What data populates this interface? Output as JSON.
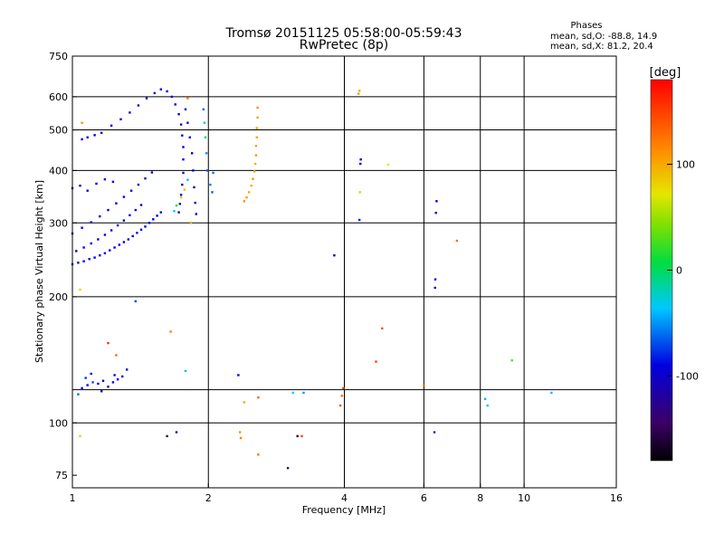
{
  "chart_data": {
    "type": "scatter",
    "title": "Tromsø 20151125 05:58:00-05:59:43",
    "subtitle": "RwPretec (8p)",
    "xlabel": "Frequency [MHz]",
    "ylabel": "Stationary phase Virtual Height [km]",
    "x_scale": "log",
    "y_scale": "log",
    "xlim": [
      1,
      16
    ],
    "ylim": [
      70,
      750
    ],
    "x_ticks": [
      1,
      2,
      4,
      6,
      8,
      10,
      16
    ],
    "x_tick_labels": [
      "1",
      "2",
      "4",
      "6",
      "8",
      "10",
      "16"
    ],
    "y_ticks": [
      75,
      100,
      200,
      300,
      400,
      500,
      600,
      750
    ],
    "y_tick_labels": [
      "75",
      "100",
      "200",
      "300",
      "400",
      "500",
      "600",
      "750"
    ],
    "grid_x": [
      2,
      4,
      6,
      8,
      10
    ],
    "grid_y": [
      100,
      200,
      300,
      400,
      500,
      600
    ],
    "minor_grid_y": [
      120
    ],
    "phases": {
      "title": "Phases",
      "line1": "mean, sd,O: -88.8, 14.9",
      "line2": "mean, sd,X:  81.2, 20.4"
    },
    "colorbar": {
      "label": "[deg]",
      "range": [
        -180,
        180
      ],
      "ticks": [
        100,
        0,
        -100
      ],
      "tick_labels": [
        "100",
        "0",
        "-100"
      ]
    },
    "series": [
      {
        "values": [
          {
            "x": 1.0,
            "y": 239,
            "phase": -95
          },
          {
            "x": 1.03,
            "y": 241,
            "phase": -98
          },
          {
            "x": 1.06,
            "y": 243,
            "phase": -92
          },
          {
            "x": 1.09,
            "y": 246,
            "phase": -96
          },
          {
            "x": 1.12,
            "y": 248,
            "phase": -90
          },
          {
            "x": 1.15,
            "y": 251,
            "phase": -94
          },
          {
            "x": 1.18,
            "y": 254,
            "phase": -88
          },
          {
            "x": 1.21,
            "y": 258,
            "phase": -97
          },
          {
            "x": 1.24,
            "y": 262,
            "phase": -91
          },
          {
            "x": 1.27,
            "y": 266,
            "phase": -95
          },
          {
            "x": 1.3,
            "y": 270,
            "phase": -89
          },
          {
            "x": 1.33,
            "y": 274,
            "phase": -99
          },
          {
            "x": 1.36,
            "y": 279,
            "phase": -93
          },
          {
            "x": 1.39,
            "y": 284,
            "phase": -87
          },
          {
            "x": 1.42,
            "y": 289,
            "phase": -96
          },
          {
            "x": 1.45,
            "y": 294,
            "phase": -90
          },
          {
            "x": 1.48,
            "y": 300,
            "phase": -94
          },
          {
            "x": 1.51,
            "y": 306,
            "phase": -92
          },
          {
            "x": 1.54,
            "y": 312,
            "phase": -98
          },
          {
            "x": 1.57,
            "y": 318,
            "phase": -86
          },
          {
            "x": 1.02,
            "y": 257,
            "phase": -92
          },
          {
            "x": 1.06,
            "y": 262,
            "phase": -96
          },
          {
            "x": 1.1,
            "y": 268,
            "phase": -90
          },
          {
            "x": 1.14,
            "y": 274,
            "phase": -94
          },
          {
            "x": 1.18,
            "y": 281,
            "phase": -89
          },
          {
            "x": 1.22,
            "y": 288,
            "phase": -97
          },
          {
            "x": 1.26,
            "y": 296,
            "phase": -93
          },
          {
            "x": 1.3,
            "y": 304,
            "phase": -88
          },
          {
            "x": 1.34,
            "y": 313,
            "phase": -95
          },
          {
            "x": 1.38,
            "y": 322,
            "phase": -91
          },
          {
            "x": 1.42,
            "y": 331,
            "phase": -96
          },
          {
            "x": 1.0,
            "y": 283,
            "phase": -90
          },
          {
            "x": 1.05,
            "y": 292,
            "phase": -94
          },
          {
            "x": 1.1,
            "y": 301,
            "phase": -88
          },
          {
            "x": 1.15,
            "y": 311,
            "phase": -96
          },
          {
            "x": 1.2,
            "y": 322,
            "phase": -91
          },
          {
            "x": 1.25,
            "y": 334,
            "phase": -95
          },
          {
            "x": 1.3,
            "y": 346,
            "phase": -89
          },
          {
            "x": 1.35,
            "y": 358,
            "phase": -97
          },
          {
            "x": 1.4,
            "y": 370,
            "phase": -92
          },
          {
            "x": 1.45,
            "y": 383,
            "phase": -87
          },
          {
            "x": 1.5,
            "y": 396,
            "phase": -94
          },
          {
            "x": 1.0,
            "y": 363,
            "phase": -92
          },
          {
            "x": 1.04,
            "y": 368,
            "phase": -96
          },
          {
            "x": 1.08,
            "y": 358,
            "phase": -90
          },
          {
            "x": 1.13,
            "y": 372,
            "phase": -95
          },
          {
            "x": 1.18,
            "y": 381,
            "phase": -89
          },
          {
            "x": 1.23,
            "y": 376,
            "phase": -94
          },
          {
            "x": 1.05,
            "y": 475,
            "phase": -93
          },
          {
            "x": 1.08,
            "y": 480,
            "phase": -97
          },
          {
            "x": 1.12,
            "y": 486,
            "phase": -91
          },
          {
            "x": 1.16,
            "y": 492,
            "phase": -95
          },
          {
            "x": 1.22,
            "y": 512,
            "phase": -90
          },
          {
            "x": 1.28,
            "y": 530,
            "phase": -94
          },
          {
            "x": 1.34,
            "y": 550,
            "phase": -88
          },
          {
            "x": 1.4,
            "y": 572,
            "phase": -96
          },
          {
            "x": 1.46,
            "y": 595,
            "phase": -92
          },
          {
            "x": 1.52,
            "y": 612,
            "phase": -87
          },
          {
            "x": 1.57,
            "y": 625,
            "phase": -95
          },
          {
            "x": 1.62,
            "y": 618,
            "phase": -90
          },
          {
            "x": 1.66,
            "y": 600,
            "phase": -94
          },
          {
            "x": 1.69,
            "y": 575,
            "phase": -89
          },
          {
            "x": 1.72,
            "y": 545,
            "phase": -96
          },
          {
            "x": 1.74,
            "y": 515,
            "phase": -92
          },
          {
            "x": 1.75,
            "y": 485,
            "phase": -98
          },
          {
            "x": 1.76,
            "y": 455,
            "phase": -91
          },
          {
            "x": 1.76,
            "y": 425,
            "phase": -95
          },
          {
            "x": 1.76,
            "y": 395,
            "phase": -88
          },
          {
            "x": 1.75,
            "y": 370,
            "phase": -94
          },
          {
            "x": 1.74,
            "y": 350,
            "phase": -90
          },
          {
            "x": 1.73,
            "y": 333,
            "phase": -97
          },
          {
            "x": 1.72,
            "y": 318,
            "phase": -93
          },
          {
            "x": 1.78,
            "y": 560,
            "phase": -92
          },
          {
            "x": 1.8,
            "y": 520,
            "phase": -88
          },
          {
            "x": 1.82,
            "y": 480,
            "phase": -95
          },
          {
            "x": 1.84,
            "y": 440,
            "phase": -91
          },
          {
            "x": 1.85,
            "y": 400,
            "phase": -97
          },
          {
            "x": 1.86,
            "y": 365,
            "phase": -93
          },
          {
            "x": 1.87,
            "y": 335,
            "phase": -89
          },
          {
            "x": 1.88,
            "y": 315,
            "phase": -95
          },
          {
            "x": 1.68,
            "y": 320,
            "phase": -30
          },
          {
            "x": 1.7,
            "y": 330,
            "phase": 10
          },
          {
            "x": 1.74,
            "y": 345,
            "phase": 60
          },
          {
            "x": 1.77,
            "y": 360,
            "phase": 90
          },
          {
            "x": 1.8,
            "y": 380,
            "phase": -40
          },
          {
            "x": 1.83,
            "y": 300,
            "phase": 100
          },
          {
            "x": 1.95,
            "y": 560,
            "phase": -60
          },
          {
            "x": 1.96,
            "y": 520,
            "phase": -20
          },
          {
            "x": 1.97,
            "y": 480,
            "phase": 10
          },
          {
            "x": 1.98,
            "y": 440,
            "phase": -50
          },
          {
            "x": 1.99,
            "y": 400,
            "phase": -70
          },
          {
            "x": 2.02,
            "y": 370,
            "phase": -55
          },
          {
            "x": 2.04,
            "y": 355,
            "phase": -65
          },
          {
            "x": 2.05,
            "y": 395,
            "phase": -60
          },
          {
            "x": 2.4,
            "y": 338,
            "phase": 110
          },
          {
            "x": 2.43,
            "y": 345,
            "phase": 105
          },
          {
            "x": 2.46,
            "y": 355,
            "phase": 100
          },
          {
            "x": 2.49,
            "y": 368,
            "phase": 95
          },
          {
            "x": 2.51,
            "y": 382,
            "phase": 108
          },
          {
            "x": 2.53,
            "y": 398,
            "phase": 102
          },
          {
            "x": 2.54,
            "y": 415,
            "phase": 96
          },
          {
            "x": 2.55,
            "y": 435,
            "phase": 110
          },
          {
            "x": 2.55,
            "y": 458,
            "phase": 104
          },
          {
            "x": 2.56,
            "y": 480,
            "phase": 98
          },
          {
            "x": 2.56,
            "y": 505,
            "phase": 106
          },
          {
            "x": 2.57,
            "y": 535,
            "phase": 100
          },
          {
            "x": 2.57,
            "y": 565,
            "phase": 112
          },
          {
            "x": 1.05,
            "y": 121,
            "phase": -85
          },
          {
            "x": 1.08,
            "y": 123,
            "phase": -92
          },
          {
            "x": 1.11,
            "y": 125,
            "phase": -70
          },
          {
            "x": 1.14,
            "y": 124,
            "phase": -88
          },
          {
            "x": 1.17,
            "y": 126,
            "phase": -95
          },
          {
            "x": 1.2,
            "y": 122,
            "phase": -130
          },
          {
            "x": 1.23,
            "y": 125,
            "phase": -90
          },
          {
            "x": 1.26,
            "y": 127,
            "phase": -100
          },
          {
            "x": 1.29,
            "y": 129,
            "phase": -94
          },
          {
            "x": 1.32,
            "y": 134,
            "phase": -96
          },
          {
            "x": 1.03,
            "y": 117,
            "phase": -60
          },
          {
            "x": 1.07,
            "y": 128,
            "phase": -75
          },
          {
            "x": 1.1,
            "y": 131,
            "phase": -90
          },
          {
            "x": 1.16,
            "y": 119,
            "phase": -110
          },
          {
            "x": 1.24,
            "y": 130,
            "phase": -88
          },
          {
            "x": 1.04,
            "y": 93,
            "phase": 60
          },
          {
            "x": 1.04,
            "y": 208,
            "phase": 80
          },
          {
            "x": 1.05,
            "y": 520,
            "phase": 110
          },
          {
            "x": 1.2,
            "y": 155,
            "phase": 160
          },
          {
            "x": 1.25,
            "y": 145,
            "phase": 130
          },
          {
            "x": 1.38,
            "y": 195,
            "phase": -70
          },
          {
            "x": 1.62,
            "y": 93,
            "phase": -150
          },
          {
            "x": 1.7,
            "y": 95,
            "phase": -110
          },
          {
            "x": 1.65,
            "y": 165,
            "phase": 120
          },
          {
            "x": 1.78,
            "y": 133,
            "phase": -40
          },
          {
            "x": 1.8,
            "y": 595,
            "phase": 120
          },
          {
            "x": 2.33,
            "y": 130,
            "phase": -90
          },
          {
            "x": 2.35,
            "y": 95,
            "phase": 110
          },
          {
            "x": 2.36,
            "y": 92,
            "phase": 120
          },
          {
            "x": 2.4,
            "y": 112,
            "phase": 100
          },
          {
            "x": 2.58,
            "y": 84,
            "phase": 125
          },
          {
            "x": 2.58,
            "y": 115,
            "phase": 130
          },
          {
            "x": 3.0,
            "y": 78,
            "phase": -140
          },
          {
            "x": 3.08,
            "y": 118,
            "phase": -30
          },
          {
            "x": 3.15,
            "y": 93,
            "phase": -160
          },
          {
            "x": 3.22,
            "y": 93,
            "phase": 150
          },
          {
            "x": 3.25,
            "y": 118,
            "phase": -50
          },
          {
            "x": 3.8,
            "y": 251,
            "phase": -110
          },
          {
            "x": 3.92,
            "y": 110,
            "phase": 140
          },
          {
            "x": 3.95,
            "y": 116,
            "phase": 130
          },
          {
            "x": 3.98,
            "y": 121,
            "phase": 150
          },
          {
            "x": 4.32,
            "y": 305,
            "phase": -80
          },
          {
            "x": 4.33,
            "y": 355,
            "phase": 60
          },
          {
            "x": 4.34,
            "y": 415,
            "phase": -100
          },
          {
            "x": 4.35,
            "y": 425,
            "phase": -90
          },
          {
            "x": 4.3,
            "y": 610,
            "phase": 110
          },
          {
            "x": 4.32,
            "y": 620,
            "phase": 100
          },
          {
            "x": 4.7,
            "y": 140,
            "phase": 150
          },
          {
            "x": 4.85,
            "y": 168,
            "phase": 140
          },
          {
            "x": 5.0,
            "y": 413,
            "phase": 70
          },
          {
            "x": 6.0,
            "y": 123,
            "phase": 130
          },
          {
            "x": 6.33,
            "y": 95,
            "phase": -80
          },
          {
            "x": 6.35,
            "y": 210,
            "phase": -110
          },
          {
            "x": 6.36,
            "y": 220,
            "phase": -100
          },
          {
            "x": 6.38,
            "y": 317,
            "phase": -120
          },
          {
            "x": 6.4,
            "y": 338,
            "phase": -90
          },
          {
            "x": 7.1,
            "y": 272,
            "phase": 130
          },
          {
            "x": 8.2,
            "y": 114,
            "phase": -40
          },
          {
            "x": 8.3,
            "y": 110,
            "phase": -20
          },
          {
            "x": 9.4,
            "y": 141,
            "phase": 30
          },
          {
            "x": 11.5,
            "y": 118,
            "phase": -40
          }
        ]
      }
    ]
  }
}
